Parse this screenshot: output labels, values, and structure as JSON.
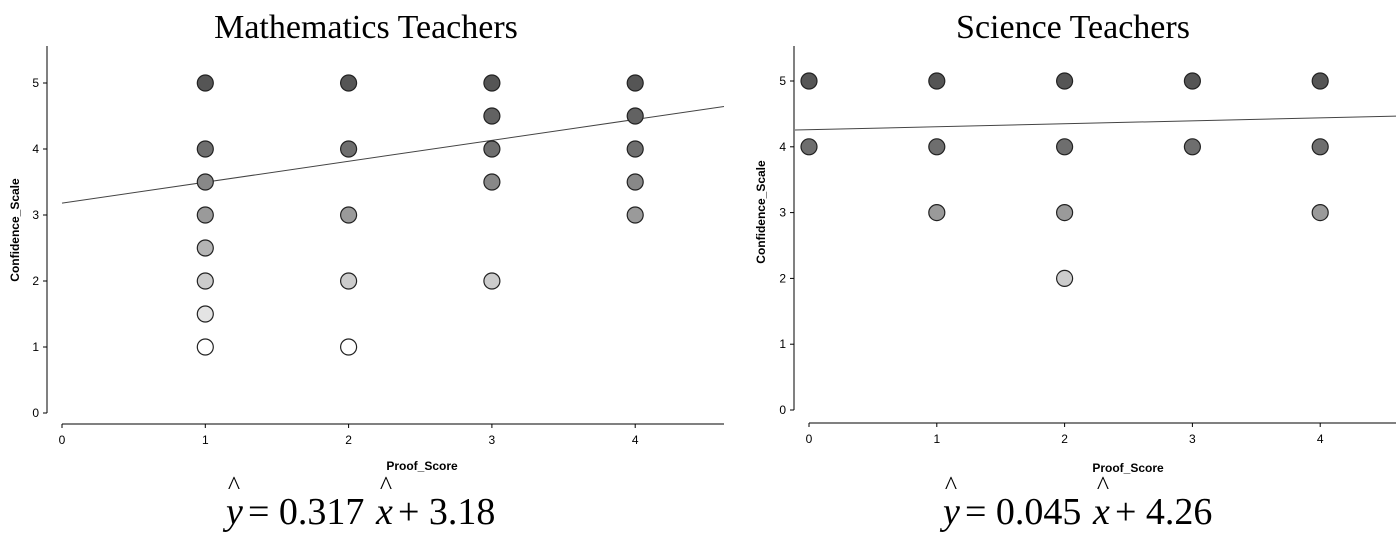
{
  "chart_data": [
    {
      "type": "scatter",
      "title": "Mathematics Teachers",
      "xlabel": "Proof_Score",
      "ylabel": "Confidence_Scale",
      "xlim": [
        0,
        4.6
      ],
      "ylim": [
        0,
        5.5
      ],
      "xticks": [
        "0",
        "1",
        "2",
        "3",
        "4"
      ],
      "yticks": [
        "0",
        "1",
        "2",
        "3",
        "4",
        "5"
      ],
      "grid": false,
      "points": [
        {
          "x": 1,
          "y": 5,
          "color": "#555555"
        },
        {
          "x": 1,
          "y": 4,
          "color": "#6e6e6e"
        },
        {
          "x": 1,
          "y": 3.5,
          "color": "#888888"
        },
        {
          "x": 1,
          "y": 3,
          "color": "#9a9a9a"
        },
        {
          "x": 1,
          "y": 2.5,
          "color": "#b4b4b4"
        },
        {
          "x": 1,
          "y": 2,
          "color": "#cccccc"
        },
        {
          "x": 1,
          "y": 1.5,
          "color": "#e4e4e4"
        },
        {
          "x": 1,
          "y": 1,
          "color": "#ffffff"
        },
        {
          "x": 2,
          "y": 5,
          "color": "#555555"
        },
        {
          "x": 2,
          "y": 4,
          "color": "#6e6e6e"
        },
        {
          "x": 2,
          "y": 3,
          "color": "#9a9a9a"
        },
        {
          "x": 2,
          "y": 2,
          "color": "#cccccc"
        },
        {
          "x": 2,
          "y": 1,
          "color": "#ffffff"
        },
        {
          "x": 3,
          "y": 5,
          "color": "#555555"
        },
        {
          "x": 3,
          "y": 4.5,
          "color": "#626262"
        },
        {
          "x": 3,
          "y": 4,
          "color": "#6e6e6e"
        },
        {
          "x": 3,
          "y": 3.5,
          "color": "#888888"
        },
        {
          "x": 3,
          "y": 2,
          "color": "#cccccc"
        },
        {
          "x": 4,
          "y": 5,
          "color": "#555555"
        },
        {
          "x": 4,
          "y": 4.5,
          "color": "#626262"
        },
        {
          "x": 4,
          "y": 4,
          "color": "#6e6e6e"
        },
        {
          "x": 4,
          "y": 3.5,
          "color": "#888888"
        },
        {
          "x": 4,
          "y": 3,
          "color": "#9a9a9a"
        }
      ],
      "fit": {
        "slope": 0.317,
        "intercept": 3.18
      },
      "equation": {
        "lhs": "y",
        "rhs": "= 0.317",
        "x": "x",
        "tail": "+ 3.18"
      }
    },
    {
      "type": "scatter",
      "title": "Science Teachers",
      "xlabel": "Proof_Score",
      "ylabel": "Confidence_Scale",
      "xlim": [
        0,
        4.6
      ],
      "ylim": [
        0,
        5.5
      ],
      "xticks": [
        "0",
        "1",
        "2",
        "3",
        "4"
      ],
      "yticks": [
        "0",
        "1",
        "2",
        "3",
        "4",
        "5"
      ],
      "grid": false,
      "points": [
        {
          "x": 0,
          "y": 5,
          "color": "#555555"
        },
        {
          "x": 0,
          "y": 4,
          "color": "#6e6e6e"
        },
        {
          "x": 1,
          "y": 5,
          "color": "#555555"
        },
        {
          "x": 1,
          "y": 4,
          "color": "#6e6e6e"
        },
        {
          "x": 1,
          "y": 3,
          "color": "#9a9a9a"
        },
        {
          "x": 2,
          "y": 5,
          "color": "#555555"
        },
        {
          "x": 2,
          "y": 4,
          "color": "#6e6e6e"
        },
        {
          "x": 2,
          "y": 3,
          "color": "#9a9a9a"
        },
        {
          "x": 2,
          "y": 2,
          "color": "#cccccc"
        },
        {
          "x": 3,
          "y": 5,
          "color": "#555555"
        },
        {
          "x": 3,
          "y": 4,
          "color": "#6e6e6e"
        },
        {
          "x": 4,
          "y": 5,
          "color": "#555555"
        },
        {
          "x": 4,
          "y": 4,
          "color": "#6e6e6e"
        },
        {
          "x": 4,
          "y": 3,
          "color": "#9a9a9a"
        }
      ],
      "fit": {
        "slope": 0.045,
        "intercept": 4.26
      },
      "equation": {
        "lhs": "y",
        "rhs": "= 0.045",
        "x": "x",
        "tail": "+ 4.26"
      }
    }
  ]
}
